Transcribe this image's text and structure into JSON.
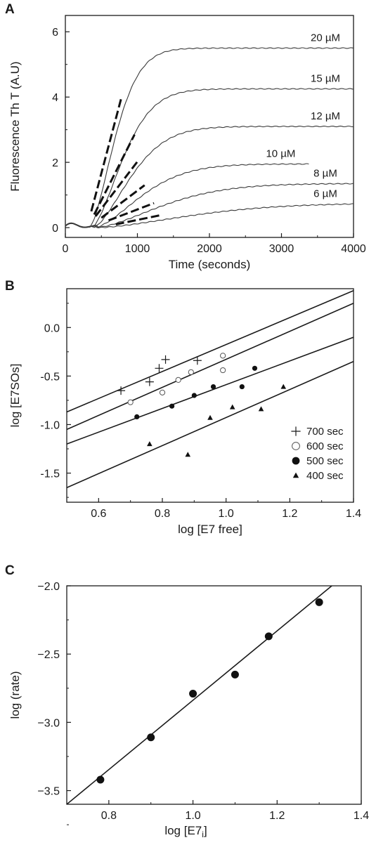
{
  "chart_data": [
    {
      "panel_label": "A",
      "type": "line",
      "xlabel": "Time (seconds)",
      "ylabel": "Fluorescence Th T (A.U)",
      "xlim": [
        0,
        4000
      ],
      "ylim": [
        -0.3,
        6.5
      ],
      "xticks": [
        0,
        1000,
        2000,
        3000,
        4000
      ],
      "yticks": [
        0,
        2,
        4,
        6
      ],
      "series": [
        {
          "name": "20 µM",
          "lag": 330,
          "plateau": 5.5,
          "k": 0.0022,
          "x_end": 4000
        },
        {
          "name": "15 µM",
          "lag": 360,
          "plateau": 4.25,
          "k": 0.0018,
          "x_end": 4000
        },
        {
          "name": "12 µM",
          "lag": 380,
          "plateau": 3.1,
          "k": 0.0015,
          "x_end": 4000
        },
        {
          "name": "10 µM",
          "lag": 400,
          "plateau": 1.95,
          "k": 0.0012,
          "x_end": 3380
        },
        {
          "name": "8 µM",
          "lag": 420,
          "plateau": 1.35,
          "k": 0.00085,
          "x_end": 4000
        },
        {
          "name": "6 µM",
          "lag": 440,
          "plateau": 0.75,
          "k": 0.0006,
          "x_end": 4000
        }
      ],
      "initial_rate_fits": [
        {
          "x": [
            360,
            780
          ],
          "y": [
            0.5,
            4.0
          ]
        },
        {
          "x": [
            400,
            960
          ],
          "y": [
            0.4,
            2.85
          ]
        },
        {
          "x": [
            420,
            1010
          ],
          "y": [
            0.35,
            2.05
          ]
        },
        {
          "x": [
            500,
            1100
          ],
          "y": [
            0.3,
            1.3
          ]
        },
        {
          "x": [
            600,
            1230
          ],
          "y": [
            0.22,
            0.75
          ]
        },
        {
          "x": [
            700,
            1320
          ],
          "y": [
            0.1,
            0.38
          ]
        }
      ]
    },
    {
      "panel_label": "B",
      "type": "scatter",
      "xlabel": "log [E7 free]",
      "ylabel": "log [E7SOs]",
      "xlim": [
        0.5,
        1.4
      ],
      "ylim": [
        -1.8,
        0.4
      ],
      "xticks": [
        "0.6",
        "0.8",
        "1.0",
        "1.2",
        "1.4"
      ],
      "yticks": [
        "0.0",
        "-0.5",
        "-1.0",
        "-1.5"
      ],
      "legend_position": "lower-right",
      "series": [
        {
          "name": "700 sec",
          "marker": "plus",
          "x": [
            0.67,
            0.76,
            0.79,
            0.81,
            0.91
          ],
          "y": [
            -0.65,
            -0.56,
            -0.42,
            -0.33,
            -0.34
          ],
          "fit": [
            [
              0.5,
              -0.87
            ],
            [
              1.4,
              0.38
            ]
          ]
        },
        {
          "name": "600 sec",
          "marker": "open-circle",
          "x": [
            0.7,
            0.8,
            0.85,
            0.89,
            0.99,
            0.99
          ],
          "y": [
            -0.77,
            -0.67,
            -0.54,
            -0.46,
            -0.44,
            -0.29
          ],
          "fit": [
            [
              0.5,
              -1.05
            ],
            [
              1.4,
              0.25
            ]
          ]
        },
        {
          "name": "500 sec",
          "marker": "filled-circle",
          "x": [
            0.72,
            0.83,
            0.9,
            0.96,
            1.05,
            1.09
          ],
          "y": [
            -0.92,
            -0.81,
            -0.7,
            -0.61,
            -0.61,
            -0.42
          ],
          "fit": [
            [
              0.5,
              -1.2
            ],
            [
              1.4,
              -0.1
            ]
          ]
        },
        {
          "name": "400 sec",
          "marker": "triangle",
          "x": [
            0.76,
            0.88,
            0.95,
            1.02,
            1.11,
            1.18
          ],
          "y": [
            -1.2,
            -1.31,
            -0.93,
            -0.82,
            -0.84,
            -0.61
          ],
          "fit": [
            [
              0.5,
              -1.65
            ],
            [
              1.4,
              -0.35
            ]
          ]
        }
      ]
    },
    {
      "panel_label": "C",
      "type": "scatter",
      "xlabel": "log [E7",
      "xlabel_subscript": "i",
      "xlabel_suffix": "]",
      "ylabel": "log (rate)",
      "xlim": [
        0.7,
        1.4
      ],
      "ylim": [
        -3.6,
        -2.0
      ],
      "xticks": [
        "0.8",
        "1.0",
        "1.2",
        "1.4"
      ],
      "yticks": [
        "−2.0",
        "−2.5",
        "−3.0",
        "−3.5"
      ],
      "points": {
        "x": [
          0.78,
          0.9,
          1.0,
          1.1,
          1.18,
          1.3
        ],
        "y": [
          -3.42,
          -3.11,
          -2.79,
          -2.65,
          -2.37,
          -2.12
        ]
      },
      "fit": [
        [
          0.7,
          -3.6
        ],
        [
          1.33,
          -2.0
        ]
      ]
    }
  ]
}
